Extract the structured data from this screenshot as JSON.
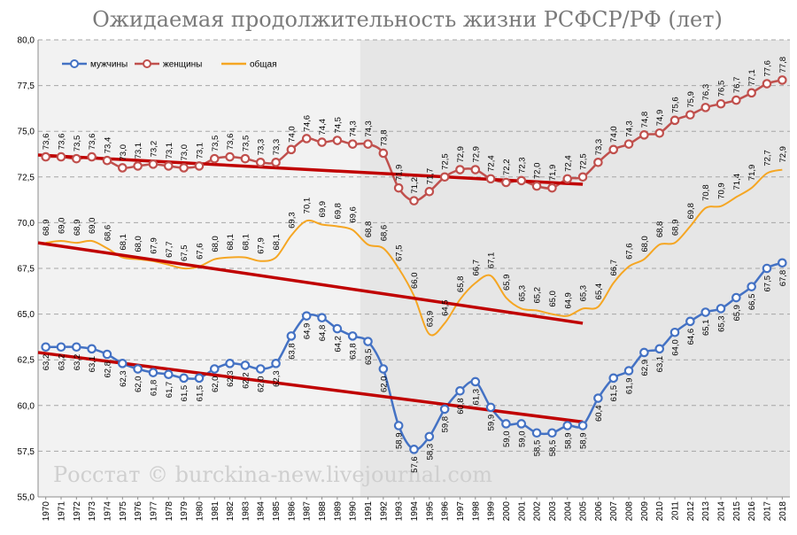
{
  "chart_data": {
    "type": "line",
    "title": "Ожидаемая продолжительность жизни РСФСР/РФ (лет)",
    "watermark": "Росстат © burckina-new.livejournal.com",
    "xlabel": "",
    "ylabel": "",
    "ylim": [
      55.0,
      80.0
    ],
    "y_ticks": [
      "55,0",
      "57,5",
      "60,0",
      "62,5",
      "65,0",
      "67,5",
      "70,0",
      "72,5",
      "75,0",
      "77,5",
      "80,0"
    ],
    "grid": true,
    "legend_position": "top-left",
    "shaded_period": [
      "1991",
      "2018"
    ],
    "x": [
      "1970",
      "1971",
      "1972",
      "1973",
      "1974",
      "1975",
      "1976",
      "1977",
      "1978",
      "1979",
      "1980",
      "1981",
      "1982",
      "1983",
      "1984",
      "1985",
      "1986",
      "1987",
      "1988",
      "1989",
      "1990",
      "1991",
      "1992",
      "1993",
      "1994",
      "1995",
      "1996",
      "1997",
      "1998",
      "1999",
      "2000",
      "2001",
      "2002",
      "2003",
      "2004",
      "2005",
      "2006",
      "2007",
      "2008",
      "2009",
      "2010",
      "2011",
      "2012",
      "2013",
      "2014",
      "2015",
      "2016",
      "2017",
      "2018"
    ],
    "series": [
      {
        "name": "мужчины",
        "color": "#4472c4",
        "marker": true,
        "values": [
          63.2,
          63.2,
          63.2,
          63.1,
          62.8,
          62.3,
          62.0,
          61.8,
          61.7,
          61.5,
          61.5,
          62.0,
          62.3,
          62.2,
          62.0,
          62.3,
          63.8,
          64.9,
          64.8,
          64.2,
          63.8,
          63.5,
          62.0,
          58.9,
          57.6,
          58.3,
          59.8,
          60.8,
          61.3,
          59.9,
          59.0,
          59.0,
          58.5,
          58.5,
          58.9,
          58.9,
          60.4,
          61.5,
          61.9,
          62.9,
          63.1,
          64.0,
          64.6,
          65.1,
          65.3,
          65.9,
          66.5,
          67.5,
          67.8
        ],
        "labels": [
          "63,2",
          "63,2",
          "63,2",
          "63,1",
          "62,8",
          "62,3",
          "62,0",
          "61,8",
          "61,7",
          "61,5",
          "61,5",
          "62,0",
          "62,3",
          "62,2",
          "62,0",
          "62,3",
          "63,8",
          "64,9",
          "64,8",
          "64,2",
          "63,8",
          "63,5",
          "62,0",
          "58,9",
          "57,6",
          "58,3",
          "59,8",
          "60,8",
          "61,3",
          "59,9",
          "59,0",
          "59,0",
          "58,5",
          "58,5",
          "58,9",
          "58,9",
          "60,4",
          "61,5",
          "61,9",
          "62,9",
          "63,1",
          "64,0",
          "64,6",
          "65,1",
          "65,3",
          "65,9",
          "66,5",
          "67,5",
          "67,8"
        ]
      },
      {
        "name": "женщины",
        "color": "#c0504d",
        "marker": true,
        "values": [
          73.6,
          73.6,
          73.5,
          73.6,
          73.4,
          73.0,
          73.1,
          73.2,
          73.1,
          73.0,
          73.1,
          73.5,
          73.6,
          73.5,
          73.3,
          73.3,
          74.0,
          74.6,
          74.4,
          74.5,
          74.3,
          74.3,
          73.8,
          71.9,
          71.2,
          71.7,
          72.5,
          72.9,
          72.9,
          72.4,
          72.2,
          72.3,
          72.0,
          71.9,
          72.4,
          72.5,
          73.3,
          74.0,
          74.3,
          74.8,
          74.9,
          75.6,
          75.9,
          76.3,
          76.5,
          76.7,
          77.1,
          77.6,
          77.8
        ],
        "labels": [
          "73,6",
          "73,6",
          "73,5",
          "73,6",
          "73,4",
          "73,0",
          "73,1",
          "73,2",
          "73,1",
          "73,0",
          "73,1",
          "73,5",
          "73,6",
          "73,5",
          "73,3",
          "73,3",
          "74,0",
          "74,6",
          "74,4",
          "74,5",
          "74,3",
          "74,3",
          "73,8",
          "71,9",
          "71,2",
          "71,7",
          "72,5",
          "72,9",
          "72,9",
          "72,4",
          "72,2",
          "72,3",
          "72,0",
          "71,9",
          "72,4",
          "72,5",
          "73,3",
          "74,0",
          "74,3",
          "74,8",
          "74,9",
          "75,6",
          "75,9",
          "76,3",
          "76,5",
          "76,7",
          "77,1",
          "77,6",
          "77,8"
        ]
      },
      {
        "name": "общая",
        "color": "#f5a623",
        "marker": false,
        "values": [
          68.9,
          69.0,
          68.9,
          69.0,
          68.6,
          68.1,
          68.0,
          67.9,
          67.7,
          67.5,
          67.6,
          68.0,
          68.1,
          68.1,
          67.9,
          68.1,
          69.3,
          70.1,
          69.9,
          69.8,
          69.6,
          68.8,
          68.6,
          67.5,
          66.0,
          63.9,
          64.5,
          65.8,
          66.7,
          67.1,
          65.9,
          65.3,
          65.2,
          65.0,
          64.9,
          65.3,
          65.4,
          66.7,
          67.6,
          68.0,
          68.8,
          68.9,
          69.8,
          70.8,
          70.9,
          71.4,
          71.9,
          72.7,
          72.9
        ],
        "labels": [
          "68,9",
          "69,0",
          "68,9",
          "69,0",
          "68,6",
          "68,1",
          "68,0",
          "67,9",
          "67,7",
          "67,5",
          "67,6",
          "68,0",
          "68,1",
          "68,1",
          "67,9",
          "68,1",
          "69,3",
          "70,1",
          "69,9",
          "69,8",
          "69,6",
          "68,8",
          "68,6",
          "67,5",
          "66,0",
          "63,9",
          "64,5",
          "65,8",
          "66,7",
          "67,1",
          "65,9",
          "65,3",
          "65,2",
          "65,0",
          "64,9",
          "65,3",
          "65,4",
          "66,7",
          "67,6",
          "68,0",
          "68,8",
          "68,9",
          "69,8",
          "70,8",
          "70,9",
          "71,4",
          "71,9",
          "72,7",
          "72,9"
        ]
      }
    ],
    "trendlines": [
      {
        "color": "#c00000",
        "from": {
          "x": "1970",
          "y": 73.7
        },
        "to": {
          "x": "2005",
          "y": 72.1
        }
      },
      {
        "color": "#c00000",
        "from": {
          "x": "1970",
          "y": 68.9
        },
        "to": {
          "x": "2005",
          "y": 64.5
        }
      },
      {
        "color": "#c00000",
        "from": {
          "x": "1970",
          "y": 62.9
        },
        "to": {
          "x": "2005",
          "y": 59.1
        }
      }
    ]
  }
}
